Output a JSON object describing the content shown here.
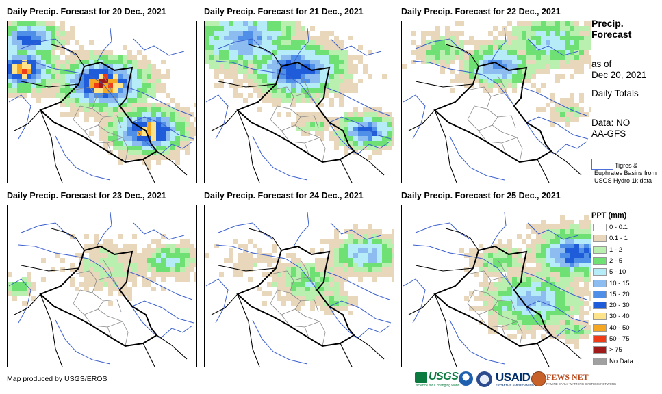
{
  "panels": [
    {
      "title": "Daily Precip. Forecast for 20 Dec., 2021",
      "day": 0
    },
    {
      "title": "Daily Precip. Forecast for 21 Dec., 2021",
      "day": 1
    },
    {
      "title": "Daily Precip. Forecast for 22 Dec., 2021",
      "day": 2
    },
    {
      "title": "Daily Precip. Forecast for 23 Dec., 2021",
      "day": 3
    },
    {
      "title": "Daily Precip. Forecast for 24 Dec., 2021",
      "day": 4
    },
    {
      "title": "Daily Precip. Forecast for 25 Dec., 2021",
      "day": 5
    }
  ],
  "legend": {
    "title": "Precip. Forecast",
    "as_of_label": "as of",
    "as_of_date": "Dec 20, 2021",
    "daily_totals": "Daily Totals",
    "data_label": "Data: NOAA-GFS",
    "basin_text": "Tigres & Euphrates Basins from USGS Hydro 1k data",
    "ppt_title": "PPT (mm)",
    "classes": [
      {
        "label": "0 - 0.1",
        "color": "#ffffff"
      },
      {
        "label": "0.1 - 1",
        "color": "#e8d7bb"
      },
      {
        "label": "1 - 2",
        "color": "#b9f0b0"
      },
      {
        "label": "2 - 5",
        "color": "#6fe074"
      },
      {
        "label": "5 - 10",
        "color": "#b5ecf8"
      },
      {
        "label": "10 - 15",
        "color": "#8cbcf0"
      },
      {
        "label": "15 - 20",
        "color": "#4f8fe8"
      },
      {
        "label": "20 - 30",
        "color": "#1f5cd9"
      },
      {
        "label": "30 - 40",
        "color": "#fde48a"
      },
      {
        "label": "40 - 50",
        "color": "#f5a623"
      },
      {
        "label": "50 - 75",
        "color": "#f03b17"
      },
      {
        "label": "> 75",
        "color": "#a11a1a"
      },
      {
        "label": "No Data",
        "color": "#a0a0a0"
      }
    ]
  },
  "footer": {
    "credit": "Map produced by USGS/EROS",
    "logos": {
      "usgs": "USGS",
      "usgs_tagline": "science for a changing world",
      "usaid": "USAID",
      "usaid_tagline": "FROM THE AMERICAN PEOPLE",
      "fews": "FEWS NET",
      "fews_tagline": "FAMINE EARLY WARNING SYSTEMS NETWORK"
    }
  }
}
